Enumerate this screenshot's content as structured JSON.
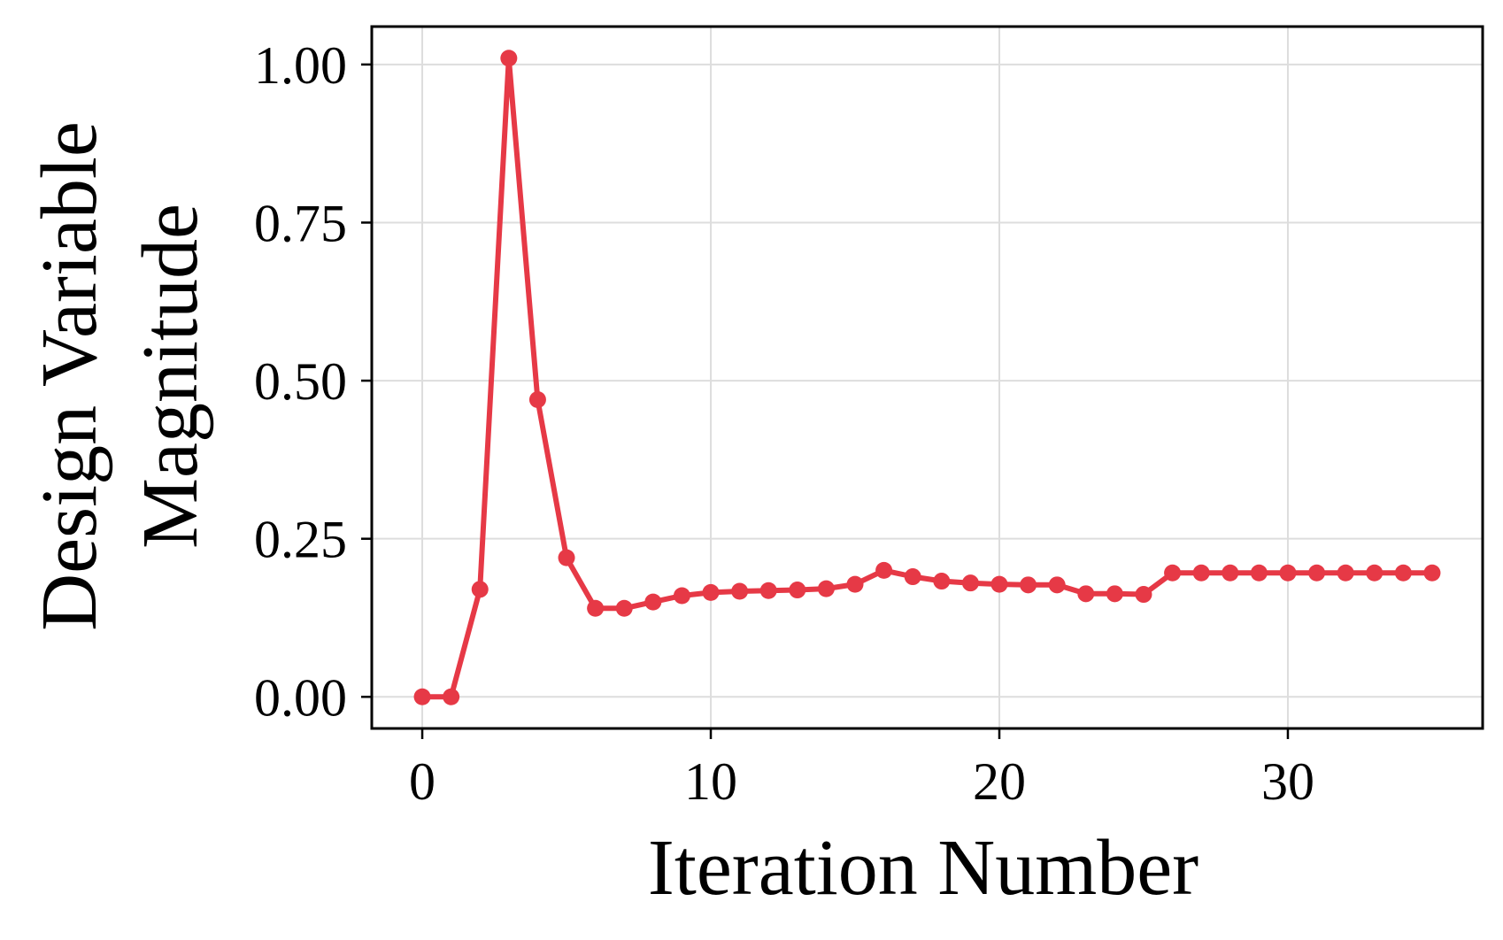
{
  "chart_data": {
    "type": "line",
    "xlabel": "Iteration Number",
    "ylabel_lines": [
      "Design Variable",
      "Magnitude"
    ],
    "xlim": [
      -1.75,
      36.75
    ],
    "ylim": [
      -0.05,
      1.06
    ],
    "xticks": [
      0,
      10,
      20,
      30
    ],
    "xtick_labels": [
      "0",
      "10",
      "20",
      "30"
    ],
    "yticks": [
      0.0,
      0.25,
      0.5,
      0.75,
      1.0
    ],
    "ytick_labels": [
      "0.00",
      "0.25",
      "0.50",
      "0.75",
      "1.00"
    ],
    "grid": true,
    "color": "#e63946",
    "series": [
      {
        "x": [
          0,
          1,
          2,
          3,
          4,
          5,
          6,
          7,
          8,
          9,
          10,
          11,
          12,
          13,
          14,
          15,
          16,
          17,
          18,
          19,
          20,
          21,
          22,
          23,
          24,
          25,
          26,
          27,
          28,
          29,
          30,
          31,
          32,
          33,
          34,
          35
        ],
        "values": [
          0.0,
          0.0,
          0.17,
          1.01,
          0.47,
          0.22,
          0.14,
          0.14,
          0.15,
          0.16,
          0.165,
          0.167,
          0.168,
          0.169,
          0.171,
          0.178,
          0.2,
          0.19,
          0.183,
          0.18,
          0.178,
          0.177,
          0.177,
          0.163,
          0.163,
          0.162,
          0.196,
          0.196,
          0.196,
          0.196,
          0.196,
          0.196,
          0.196,
          0.196,
          0.196,
          0.196
        ]
      }
    ]
  }
}
